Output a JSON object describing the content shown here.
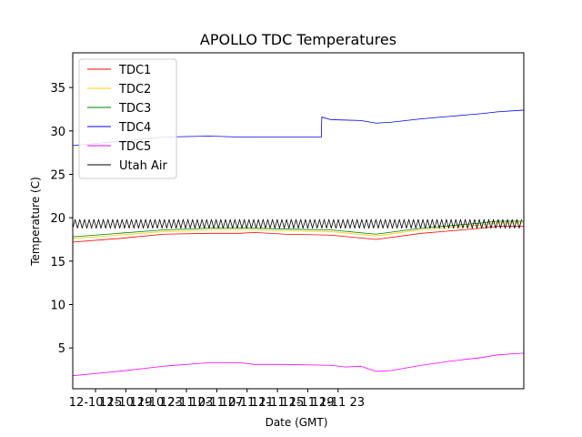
{
  "chart_data": {
    "type": "line",
    "title": "APOLLO TDC Temperatures",
    "xlabel": "Date (GMT)",
    "ylabel": "Temperature (C)",
    "xlim": [
      12.0,
      71.5
    ],
    "ylim": [
      0.3,
      39.0
    ],
    "x_unit": "hours since 12-10 00:00 GMT",
    "x_ticks": [
      {
        "value": 15,
        "label": "12-10 15"
      },
      {
        "value": 19,
        "label": "12-10 19"
      },
      {
        "value": 23,
        "label": "12-10 23"
      },
      {
        "value": 27,
        "label": "12-11 03"
      },
      {
        "value": 31,
        "label": "12-11 07"
      },
      {
        "value": 35,
        "label": "12-11 11"
      },
      {
        "value": 39,
        "label": "12-11 15"
      },
      {
        "value": 43,
        "label": "12-11 19"
      },
      {
        "value": 47,
        "label": "12-11 23"
      }
    ],
    "y_ticks": [
      {
        "value": 5,
        "label": "5"
      },
      {
        "value": 10,
        "label": "10"
      },
      {
        "value": 15,
        "label": "15"
      },
      {
        "value": 20,
        "label": "20"
      },
      {
        "value": 25,
        "label": "25"
      },
      {
        "value": 30,
        "label": "30"
      },
      {
        "value": 35,
        "label": "35"
      }
    ],
    "legend_position": "top-left",
    "series": [
      {
        "name": "TDC1",
        "color": "#ff0000",
        "x": [
          12,
          18,
          24,
          30,
          34,
          36,
          40,
          46,
          52,
          58,
          62,
          66,
          68,
          71.5
        ],
        "y": [
          17.2,
          17.6,
          18.1,
          18.2,
          18.2,
          18.3,
          18.1,
          18.0,
          17.5,
          18.2,
          18.5,
          18.8,
          19.0,
          19.0
        ]
      },
      {
        "name": "TDC2",
        "color": "#ffcc00",
        "x": [
          12,
          18,
          24,
          30,
          34,
          36,
          40,
          46,
          52,
          58,
          62,
          66,
          68,
          71.5
        ],
        "y": [
          17.6,
          18.0,
          18.4,
          18.6,
          18.6,
          18.6,
          18.5,
          18.4,
          17.9,
          18.6,
          18.9,
          19.2,
          19.4,
          19.4
        ]
      },
      {
        "name": "TDC3",
        "color": "#008000",
        "x": [
          12,
          18,
          24,
          30,
          34,
          36,
          40,
          46,
          52,
          58,
          62,
          66,
          68,
          71.5
        ],
        "y": [
          17.8,
          18.2,
          18.6,
          18.8,
          18.8,
          18.8,
          18.7,
          18.6,
          18.1,
          18.8,
          19.1,
          19.4,
          19.6,
          19.6
        ]
      },
      {
        "name": "TDC4",
        "color": "#0000ff",
        "x": [
          12,
          18,
          24,
          30,
          34,
          36,
          40,
          44.8,
          44.85,
          46,
          50,
          52,
          54,
          58,
          62,
          66,
          68,
          71.5
        ],
        "y": [
          28.3,
          28.8,
          29.3,
          29.4,
          29.3,
          29.3,
          29.3,
          29.3,
          31.6,
          31.3,
          31.2,
          30.9,
          31.0,
          31.4,
          31.7,
          32.0,
          32.2,
          32.4
        ]
      },
      {
        "name": "TDC5",
        "color": "#ff00ff",
        "x": [
          12,
          18,
          24,
          30,
          34,
          36,
          40,
          46,
          48,
          50,
          52,
          54,
          58,
          62,
          66,
          68,
          71.5
        ],
        "y": [
          1.8,
          2.3,
          2.9,
          3.3,
          3.3,
          3.1,
          3.1,
          3.0,
          2.8,
          2.9,
          2.3,
          2.4,
          3.0,
          3.5,
          3.9,
          4.2,
          4.4
        ]
      },
      {
        "name": "Utah Air",
        "color": "#000000",
        "amplitude_band": [
          18.8,
          19.8
        ],
        "cycle_hours": 0.62,
        "x": [
          12,
          71.5
        ],
        "y": [
          19.3,
          19.3
        ]
      }
    ]
  }
}
